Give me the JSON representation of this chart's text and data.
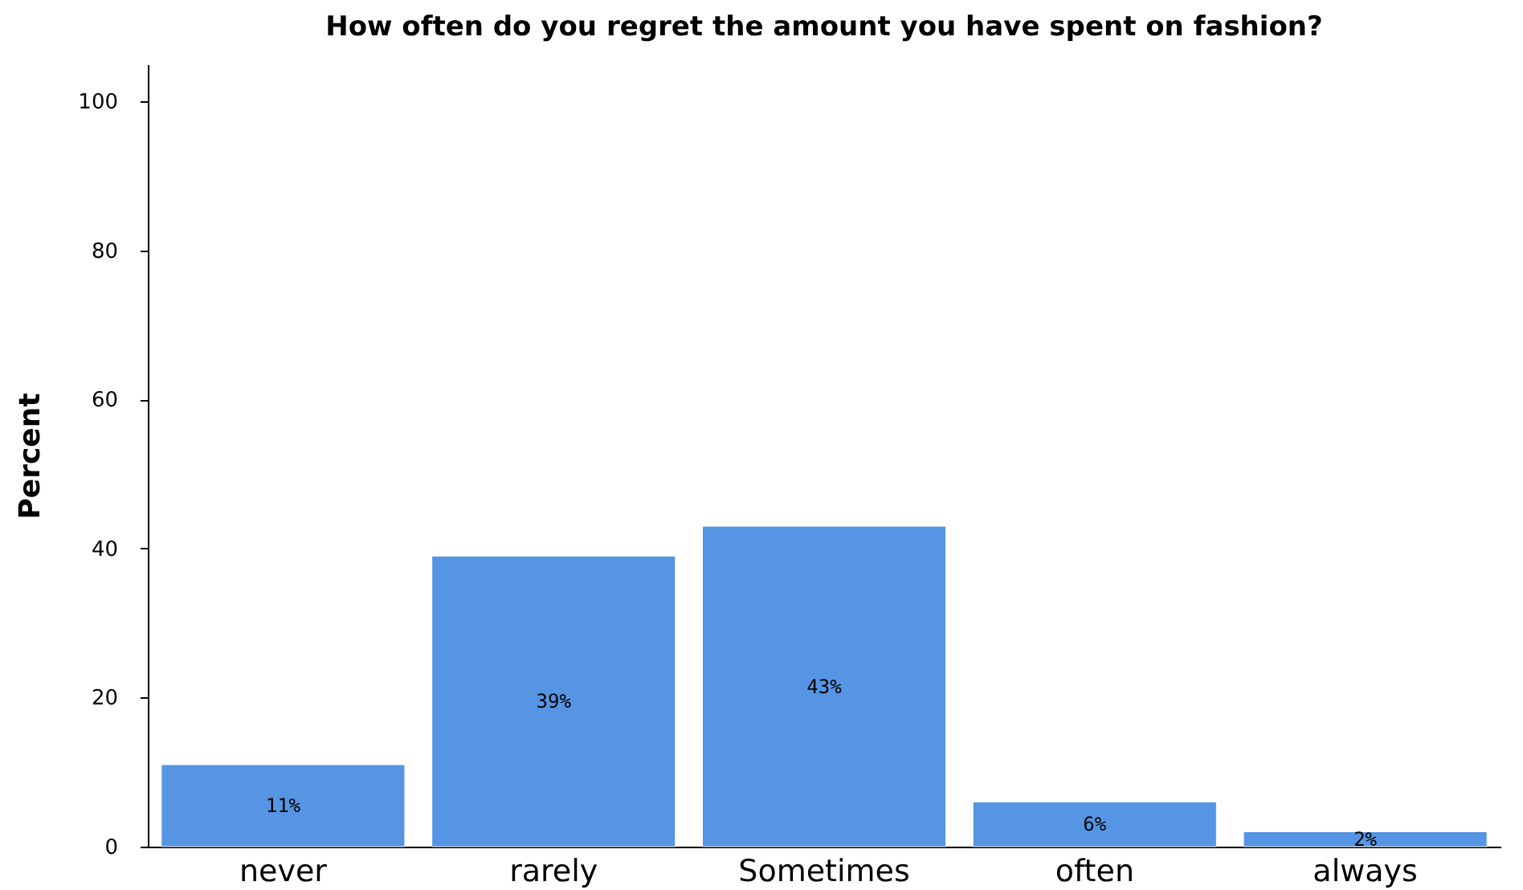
{
  "chart_data": {
    "type": "bar",
    "title": "How often do you regret the amount you have spent on fashion?",
    "ylabel": "Percent",
    "categories": [
      "never",
      "rarely",
      "Sometimes",
      "often",
      "always"
    ],
    "values": [
      11,
      39,
      43,
      6,
      2
    ],
    "value_labels": [
      "11%",
      "39%",
      "43%",
      "6%",
      "2%"
    ],
    "color": "#5595e3",
    "ylim": [
      0,
      105
    ],
    "yticks": [
      0,
      20,
      40,
      60,
      80,
      100
    ],
    "grid": false
  }
}
